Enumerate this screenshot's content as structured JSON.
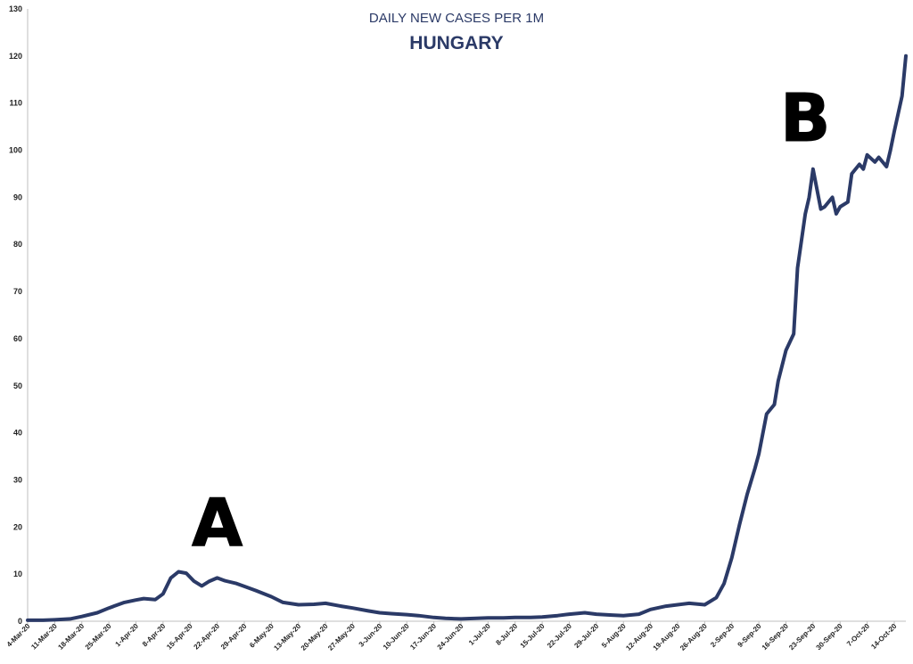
{
  "chart_data": {
    "type": "line",
    "title": "DAILY NEW CASES PER 1M",
    "subtitle": "HUNGARY",
    "xlabel": "",
    "ylabel": "",
    "ylim": [
      0,
      130
    ],
    "yticks": [
      0,
      10,
      20,
      30,
      40,
      50,
      60,
      70,
      80,
      90,
      100,
      110,
      120,
      130
    ],
    "grid": false,
    "legend": "none",
    "line_color": "#2b3a67",
    "x_tick_labels": [
      "4-Mar-20",
      "11-Mar-20",
      "18-Mar-20",
      "25-Mar-20",
      "1-Apr-20",
      "8-Apr-20",
      "15-Apr-20",
      "22-Apr-20",
      "29-Apr-20",
      "6-May-20",
      "13-May-20",
      "20-May-20",
      "27-May-20",
      "3-Jun-20",
      "10-Jun-20",
      "17-Jun-20",
      "24-Jun-20",
      "1-Jul-20",
      "8-Jul-20",
      "15-Jul-20",
      "22-Jul-20",
      "29-Jul-20",
      "5-Aug-20",
      "12-Aug-20",
      "19-Aug-20",
      "26-Aug-20",
      "2-Sep-20",
      "9-Sep-20",
      "16-Sep-20",
      "23-Sep-20",
      "30-Sep-20",
      "7-Oct-20",
      "14-Oct-20"
    ],
    "series": [
      {
        "x": [
          "4-Mar-20",
          "8-Mar-20",
          "11-Mar-20",
          "15-Mar-20",
          "18-Mar-20",
          "22-Mar-20",
          "25-Mar-20",
          "29-Mar-20",
          "1-Apr-20",
          "3-Apr-20",
          "6-Apr-20",
          "8-Apr-20",
          "10-Apr-20",
          "12-Apr-20",
          "14-Apr-20",
          "16-Apr-20",
          "18-Apr-20",
          "20-Apr-20",
          "22-Apr-20",
          "24-Apr-20",
          "27-Apr-20",
          "29-Apr-20",
          "2-May-20",
          "6-May-20",
          "9-May-20",
          "13-May-20",
          "17-May-20",
          "20-May-20",
          "24-May-20",
          "27-May-20",
          "31-May-20",
          "3-Jun-20",
          "6-Jun-20",
          "10-Jun-20",
          "13-Jun-20",
          "17-Jun-20",
          "20-Jun-20",
          "24-Jun-20",
          "28-Jun-20",
          "1-Jul-20",
          "5-Jul-20",
          "8-Jul-20",
          "12-Jul-20",
          "15-Jul-20",
          "19-Jul-20",
          "22-Jul-20",
          "26-Jul-20",
          "29-Jul-20",
          "2-Aug-20",
          "5-Aug-20",
          "9-Aug-20",
          "12-Aug-20",
          "16-Aug-20",
          "19-Aug-20",
          "22-Aug-20",
          "26-Aug-20",
          "29-Aug-20",
          "31-Aug-20",
          "2-Sep-20",
          "4-Sep-20",
          "6-Sep-20",
          "8-Sep-20",
          "9-Sep-20",
          "11-Sep-20",
          "13-Sep-20",
          "14-Sep-20",
          "16-Sep-20",
          "18-Sep-20",
          "19-Sep-20",
          "21-Sep-20",
          "22-Sep-20",
          "23-Sep-20",
          "25-Sep-20",
          "26-Sep-20",
          "28-Sep-20",
          "29-Sep-20",
          "30-Sep-20",
          "2-Oct-20",
          "3-Oct-20",
          "5-Oct-20",
          "6-Oct-20",
          "7-Oct-20",
          "9-Oct-20",
          "10-Oct-20",
          "12-Oct-20",
          "13-Oct-20",
          "14-Oct-20",
          "16-Oct-20",
          "17-Oct-20"
        ],
        "values": [
          0.2,
          0.2,
          0.3,
          0.5,
          1.0,
          1.8,
          2.8,
          4.0,
          4.5,
          4.8,
          4.6,
          5.8,
          9.2,
          10.5,
          10.2,
          8.5,
          7.5,
          8.5,
          9.2,
          8.6,
          8.0,
          7.4,
          6.5,
          5.2,
          4.0,
          3.5,
          3.6,
          3.8,
          3.2,
          2.8,
          2.2,
          1.8,
          1.6,
          1.4,
          1.2,
          0.8,
          0.6,
          0.5,
          0.6,
          0.7,
          0.7,
          0.8,
          0.8,
          0.9,
          1.2,
          1.5,
          1.8,
          1.5,
          1.3,
          1.2,
          1.5,
          2.5,
          3.2,
          3.5,
          3.8,
          3.5,
          5.0,
          8.0,
          13.5,
          20.5,
          27.0,
          32.5,
          35.5,
          44.0,
          46.0,
          51.0,
          57.5,
          61.0,
          75.0,
          86.5,
          90.0,
          96.0,
          87.5,
          88.0,
          90.0,
          86.5,
          88.0,
          89.0,
          95.0,
          97.0,
          96.0,
          99.0,
          97.5,
          98.5,
          96.5,
          100.0,
          104.0,
          111.5,
          120.0
        ]
      }
    ],
    "annotations": [
      {
        "text": "A",
        "x": "22-Apr-20",
        "y": 16
      },
      {
        "text": "B",
        "x": "21-Sep-20",
        "y": 102
      }
    ]
  }
}
